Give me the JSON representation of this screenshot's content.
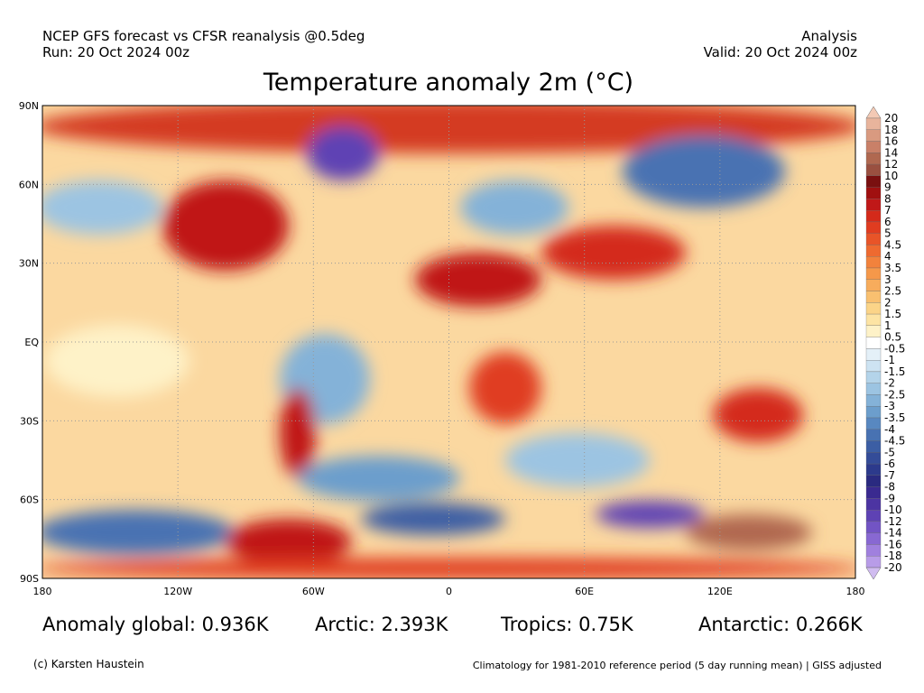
{
  "header": {
    "source": "NCEP GFS forecast vs CFSR reanalysis @0.5deg",
    "run": "Run: 20 Oct 2024 00z",
    "mode": "Analysis",
    "valid": "Valid: 20 Oct 2024 00z",
    "title": "Temperature anomaly 2m (°C)"
  },
  "map": {
    "lat_labels": [
      "90N",
      "60N",
      "30N",
      "EQ",
      "30S",
      "60S",
      "90S"
    ],
    "lon_labels": [
      "180",
      "120W",
      "60W",
      "0",
      "60E",
      "120E",
      "180"
    ]
  },
  "colorbar": {
    "levels": [
      20,
      18,
      16,
      14,
      12,
      10,
      9,
      8,
      7,
      6,
      5,
      4.5,
      4,
      3.5,
      3,
      2.5,
      2,
      1.5,
      1,
      0.5,
      -0.5,
      -1,
      -1.5,
      -2,
      -2.5,
      -3,
      -3.5,
      -4,
      -4.5,
      -5,
      -6,
      -7,
      -8,
      -9,
      -10,
      -12,
      -14,
      -16,
      -18,
      -20
    ],
    "colors": [
      "#f3c9b4",
      "#e8b49c",
      "#d99a80",
      "#c98068",
      "#b06850",
      "#9a5040",
      "#7a1010",
      "#a01010",
      "#c01818",
      "#d42a1a",
      "#e03c20",
      "#e85428",
      "#ee6a30",
      "#f2823c",
      "#f5984a",
      "#f7ac5c",
      "#f9c070",
      "#fbd488",
      "#fde4a4",
      "#fef2c8",
      "#ffffff",
      "#e4f0f8",
      "#cde3f2",
      "#b4d4ea",
      "#9cc4e2",
      "#84b2d8",
      "#6c9ecc",
      "#5888c0",
      "#4872b2",
      "#3c5ea4",
      "#344c98",
      "#2c3a8c",
      "#2a2a80",
      "#3a2a90",
      "#4c34a2",
      "#5e42b4",
      "#7254c4",
      "#8868d2",
      "#a080de",
      "#b89ce8",
      "#d0bcf0"
    ]
  },
  "stats": [
    "Anomaly global: 0.936K",
    "Arctic: 2.393K",
    "Tropics: 0.75K",
    "Antarctic: 0.266K"
  ],
  "footer": {
    "credit": "(c) Karsten Haustein",
    "note": "Climatology for 1981-2010 reference period (5 day running mean) | GISS adjusted"
  }
}
